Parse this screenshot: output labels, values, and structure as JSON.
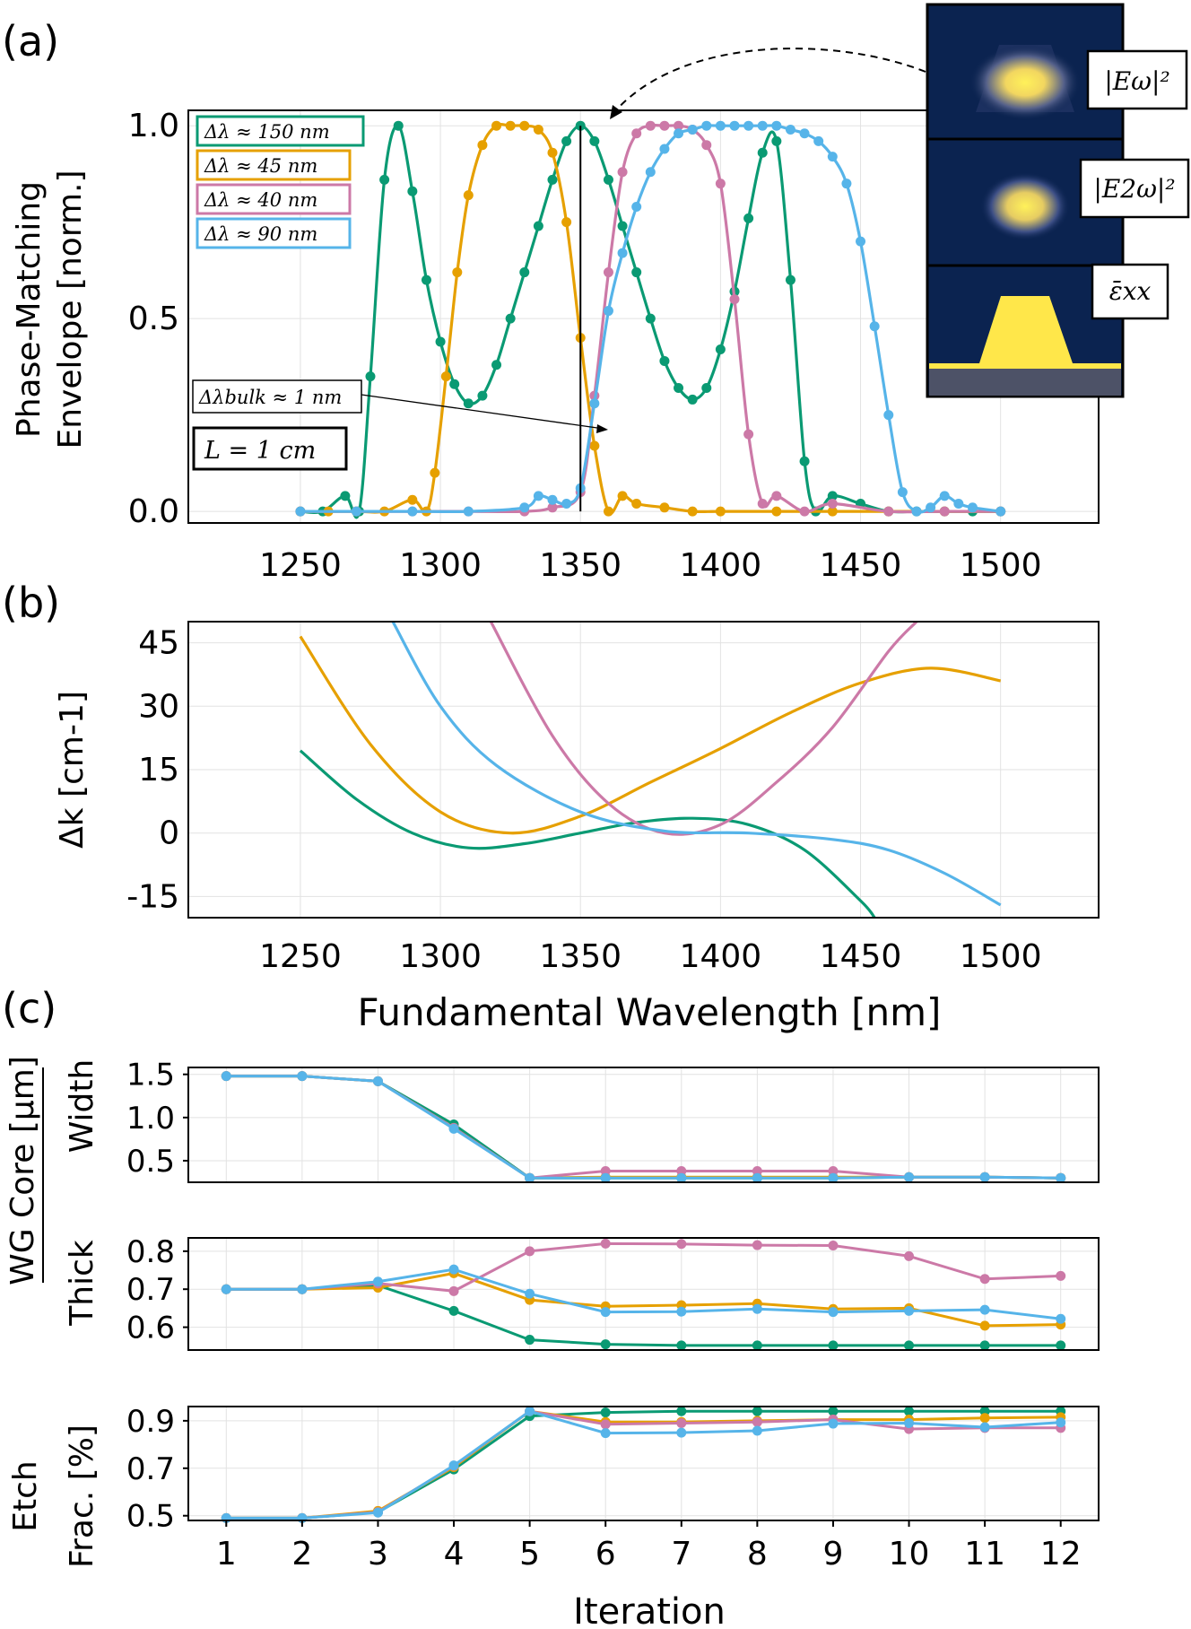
{
  "colors": {
    "green": "#0a9a73",
    "orange": "#e6a000",
    "pink": "#cc79a7",
    "blue": "#56b4e9",
    "navy": "#0b2350",
    "yellow": "#ffe74a",
    "substrate": "#4d5267"
  },
  "panel_labels": {
    "a": "(a)",
    "b": "(b)",
    "c": "(c)"
  },
  "chart_data": [
    {
      "id": "a",
      "type": "line",
      "ylabel_line1": "Phase-Matching",
      "ylabel_line2": "Envelope [norm.]",
      "xlim": [
        1210,
        1535
      ],
      "ylim": [
        -0.03,
        1.04
      ],
      "xticks": [
        1250,
        1300,
        1350,
        1400,
        1450,
        1500
      ],
      "ytick_labels": [
        "0.0",
        "0.5",
        "1.0"
      ],
      "yticks": [
        0,
        0.5,
        1
      ],
      "legend": [
        "Δλ ≈ 150 nm",
        "Δλ ≈ 45 nm",
        "Δλ ≈ 40 nm",
        "Δλ ≈ 90 nm"
      ],
      "series": [
        {
          "name": "Δλ ≈ 150 nm",
          "color": "green",
          "x": [
            1250,
            1258,
            1266,
            1271,
            1275,
            1280,
            1285,
            1290,
            1295,
            1300,
            1305,
            1310,
            1315,
            1320,
            1325,
            1330,
            1335,
            1340,
            1345,
            1350,
            1355,
            1360,
            1365,
            1370,
            1375,
            1380,
            1385,
            1390,
            1395,
            1400,
            1405,
            1410,
            1415,
            1420,
            1425,
            1430,
            1434,
            1440,
            1450,
            1460,
            1470,
            1480,
            1490,
            1500
          ],
          "y": [
            0,
            0,
            0.04,
            0,
            0.35,
            0.86,
            1.0,
            0.83,
            0.6,
            0.44,
            0.33,
            0.28,
            0.3,
            0.38,
            0.5,
            0.62,
            0.74,
            0.86,
            0.96,
            1.0,
            0.96,
            0.86,
            0.74,
            0.62,
            0.5,
            0.39,
            0.32,
            0.29,
            0.32,
            0.42,
            0.57,
            0.76,
            0.93,
            0.96,
            0.6,
            0.13,
            0,
            0.04,
            0.02,
            0,
            0,
            0,
            0,
            0
          ]
        },
        {
          "name": "Δλ ≈ 45 nm",
          "color": "orange",
          "x": [
            1250,
            1260,
            1270,
            1280,
            1290,
            1295,
            1298,
            1302,
            1306,
            1310,
            1315,
            1320,
            1325,
            1330,
            1335,
            1340,
            1345,
            1350,
            1355,
            1360,
            1365,
            1370,
            1380,
            1390,
            1400,
            1420,
            1440,
            1460,
            1480,
            1500
          ],
          "y": [
            0,
            0,
            0,
            0,
            0.03,
            0,
            0.1,
            0.35,
            0.62,
            0.82,
            0.95,
            1.0,
            1.0,
            1.0,
            0.99,
            0.93,
            0.75,
            0.45,
            0.17,
            0,
            0.04,
            0.02,
            0.01,
            0,
            0,
            0,
            0,
            0,
            0,
            0
          ]
        },
        {
          "name": "Δλ ≈ 40 nm",
          "color": "pink",
          "x": [
            1250,
            1270,
            1290,
            1310,
            1330,
            1340,
            1350,
            1355,
            1360,
            1365,
            1370,
            1375,
            1380,
            1385,
            1390,
            1395,
            1400,
            1405,
            1410,
            1415,
            1420,
            1430,
            1440,
            1460,
            1480,
            1500
          ],
          "y": [
            0,
            0,
            0,
            0,
            0,
            0.01,
            0.05,
            0.3,
            0.62,
            0.88,
            0.98,
            1.0,
            1.0,
            1.0,
            0.99,
            0.95,
            0.85,
            0.55,
            0.2,
            0.02,
            0.04,
            0,
            0.02,
            0,
            0,
            0
          ]
        },
        {
          "name": "Δλ ≈ 90 nm",
          "color": "blue",
          "x": [
            1250,
            1270,
            1290,
            1310,
            1330,
            1335,
            1340,
            1345,
            1350,
            1355,
            1360,
            1365,
            1370,
            1375,
            1380,
            1385,
            1390,
            1395,
            1400,
            1405,
            1410,
            1415,
            1420,
            1425,
            1430,
            1435,
            1440,
            1445,
            1450,
            1455,
            1460,
            1465,
            1470,
            1475,
            1480,
            1485,
            1490,
            1500
          ],
          "y": [
            0,
            0,
            0,
            0,
            0.01,
            0.04,
            0.03,
            0.02,
            0.06,
            0.28,
            0.52,
            0.67,
            0.79,
            0.88,
            0.94,
            0.98,
            0.99,
            1.0,
            1.0,
            1.0,
            1.0,
            1.0,
            1.0,
            0.99,
            0.98,
            0.96,
            0.92,
            0.85,
            0.7,
            0.48,
            0.25,
            0.05,
            0,
            0.01,
            0.04,
            0.02,
            0.01,
            0
          ]
        }
      ],
      "bulk_peak_x": 1350,
      "annotations": {
        "bulk_label": "Δλbulk ≈ 1 nm",
        "length_label": "L = 1 cm"
      },
      "inset": {
        "field1": "|Eω|²",
        "field2": "|E2ω|²",
        "eps": "ε̄xx"
      }
    },
    {
      "id": "b",
      "type": "line",
      "ylabel": "Δk [cm-1]",
      "xlabel": "Fundamental Wavelength [nm]",
      "xlim": [
        1210,
        1535
      ],
      "ylim": [
        -20,
        50
      ],
      "xticks": [
        1250,
        1300,
        1350,
        1400,
        1450,
        1500
      ],
      "yticks": [
        -15,
        0,
        15,
        30,
        45
      ],
      "ytick_labels": [
        "-15",
        "0",
        "15",
        "30",
        "45"
      ],
      "series": [
        {
          "name": "Δλ ≈ 150 nm",
          "color": "green",
          "x": [
            1250,
            1270,
            1290,
            1310,
            1330,
            1350,
            1370,
            1390,
            1410,
            1430,
            1450,
            1455
          ],
          "y": [
            19.5,
            8,
            0,
            -3.5,
            -2.5,
            0,
            2.5,
            3.5,
            2,
            -4,
            -16,
            -20
          ]
        },
        {
          "name": "Δλ ≈ 45 nm",
          "color": "orange",
          "x": [
            1250,
            1275,
            1300,
            1325,
            1350,
            1375,
            1400,
            1425,
            1450,
            1475,
            1500
          ],
          "y": [
            46.5,
            21,
            5,
            0,
            4,
            12,
            20,
            28.5,
            35.5,
            39,
            36
          ]
        },
        {
          "name": "Δλ ≈ 40 nm",
          "color": "pink",
          "x": [
            1318,
            1340,
            1360,
            1380,
            1400,
            1420,
            1440,
            1460,
            1470
          ],
          "y": [
            50,
            23,
            7,
            0,
            2,
            12,
            25,
            43,
            50
          ]
        },
        {
          "name": "Δλ ≈ 90 nm",
          "color": "blue",
          "x": [
            1283,
            1300,
            1320,
            1350,
            1380,
            1410,
            1440,
            1460,
            1480,
            1500
          ],
          "y": [
            50,
            30,
            16,
            5,
            0.5,
            0,
            -1.5,
            -4,
            -9.5,
            -17
          ]
        }
      ]
    },
    {
      "id": "c",
      "type": "line",
      "xlabel": "Iteration",
      "group_ylabel": "WG Core [µm]",
      "xticks": [
        1,
        2,
        3,
        4,
        5,
        6,
        7,
        8,
        9,
        10,
        11,
        12
      ],
      "xlim": [
        0.5,
        12.5
      ],
      "subplots": [
        {
          "ylabel": "Width",
          "ylim": [
            0.25,
            1.58
          ],
          "yticks": [
            0.5,
            1.0,
            1.5
          ],
          "ytick_labels": [
            "0.5",
            "1.0",
            "1.5"
          ],
          "series": [
            {
              "name": "Δλ ≈ 150 nm",
              "color": "green",
              "y": [
                1.48,
                1.48,
                1.42,
                0.92,
                0.3,
                0.3,
                0.3,
                0.3,
                0.3,
                0.31,
                0.31,
                0.3
              ]
            },
            {
              "name": "Δλ ≈ 45 nm",
              "color": "orange",
              "y": [
                1.48,
                1.48,
                1.42,
                0.88,
                0.3,
                0.31,
                0.31,
                0.31,
                0.31,
                0.31,
                0.31,
                0.3
              ]
            },
            {
              "name": "Δλ ≈ 40 nm",
              "color": "pink",
              "y": [
                1.48,
                1.48,
                1.42,
                0.88,
                0.3,
                0.38,
                0.38,
                0.38,
                0.38,
                0.31,
                0.31,
                0.3
              ]
            },
            {
              "name": "Δλ ≈ 90 nm",
              "color": "blue",
              "y": [
                1.48,
                1.48,
                1.42,
                0.87,
                0.3,
                0.3,
                0.3,
                0.3,
                0.3,
                0.31,
                0.31,
                0.3
              ]
            }
          ]
        },
        {
          "ylabel": "Thick",
          "ylim": [
            0.54,
            0.835
          ],
          "yticks": [
            0.6,
            0.7,
            0.8
          ],
          "ytick_labels": [
            "0.6",
            "0.7",
            "0.8"
          ],
          "series": [
            {
              "name": "Δλ ≈ 150 nm",
              "color": "green",
              "y": [
                0.7,
                0.7,
                0.71,
                0.643,
                0.567,
                0.555,
                0.552,
                0.552,
                0.552,
                0.552,
                0.552,
                0.552
              ]
            },
            {
              "name": "Δλ ≈ 45 nm",
              "color": "orange",
              "y": [
                0.7,
                0.7,
                0.704,
                0.742,
                0.672,
                0.655,
                0.658,
                0.662,
                0.648,
                0.65,
                0.604,
                0.607
              ]
            },
            {
              "name": "Δλ ≈ 40 nm",
              "color": "pink",
              "y": [
                0.7,
                0.7,
                0.715,
                0.695,
                0.8,
                0.82,
                0.819,
                0.816,
                0.815,
                0.787,
                0.727,
                0.735
              ]
            },
            {
              "name": "Δλ ≈ 90 nm",
              "color": "blue",
              "y": [
                0.7,
                0.7,
                0.72,
                0.752,
                0.688,
                0.64,
                0.641,
                0.648,
                0.64,
                0.643,
                0.646,
                0.622
              ]
            }
          ]
        },
        {
          "ylabel_line1": "Etch",
          "ylabel_line2": "Frac. [%]",
          "ylim": [
            0.48,
            0.96
          ],
          "yticks": [
            0.5,
            0.7,
            0.9
          ],
          "ytick_labels": [
            "0.5",
            "0.7",
            "0.9"
          ],
          "series": [
            {
              "name": "Δλ ≈ 150 nm",
              "color": "green",
              "y": [
                0.49,
                0.49,
                0.515,
                0.695,
                0.92,
                0.935,
                0.94,
                0.94,
                0.94,
                0.94,
                0.94,
                0.94
              ]
            },
            {
              "name": "Δλ ≈ 45 nm",
              "color": "orange",
              "y": [
                0.49,
                0.49,
                0.52,
                0.705,
                0.94,
                0.895,
                0.895,
                0.9,
                0.905,
                0.905,
                0.912,
                0.915
              ]
            },
            {
              "name": "Δλ ≈ 40 nm",
              "color": "pink",
              "y": [
                0.49,
                0.49,
                0.515,
                0.71,
                0.94,
                0.885,
                0.89,
                0.895,
                0.905,
                0.865,
                0.87,
                0.87
              ]
            },
            {
              "name": "Δλ ≈ 90 nm",
              "color": "blue",
              "y": [
                0.49,
                0.49,
                0.513,
                0.712,
                0.94,
                0.848,
                0.85,
                0.858,
                0.888,
                0.89,
                0.873,
                0.893
              ]
            }
          ]
        }
      ]
    }
  ]
}
